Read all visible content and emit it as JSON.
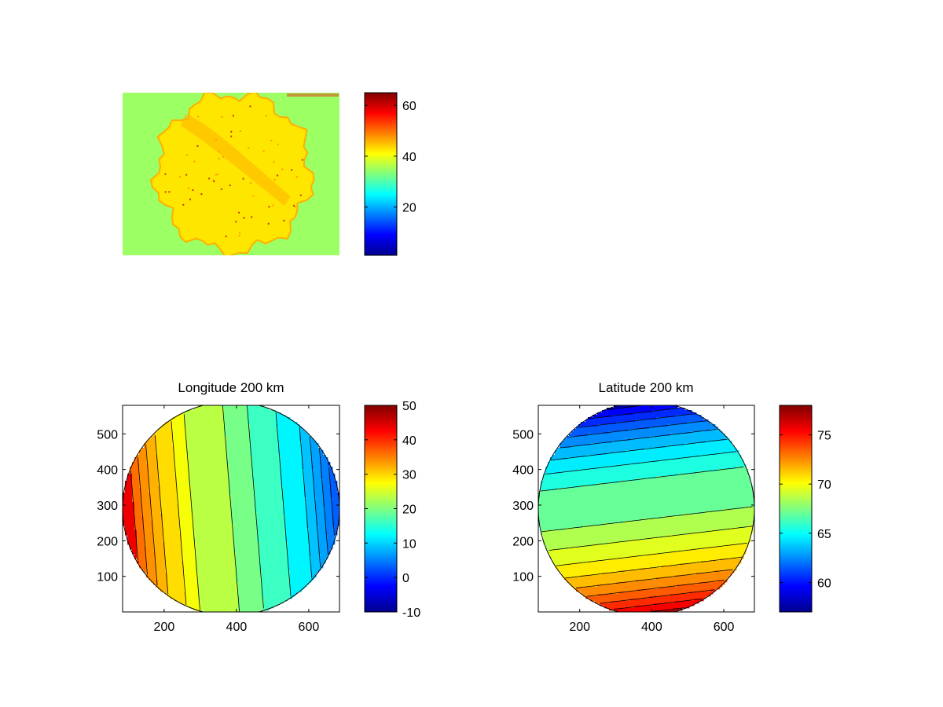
{
  "figure": {
    "background": "#ffffff"
  },
  "colormap": "jet",
  "chart_data": [
    {
      "type": "heatmap",
      "id": "radar-image",
      "title": "",
      "description_field": "circular echo region, values ~35-50 (yellow/orange) on flat ~32 (light green) background",
      "background_value": 32,
      "disk_value_range": [
        36,
        50
      ],
      "hotspot_max": 65,
      "xticks": [],
      "yticks": [],
      "colorbar": {
        "clim": [
          1,
          65
        ],
        "ticks": [
          20,
          40,
          60
        ]
      }
    },
    {
      "type": "heatmap",
      "id": "longitude",
      "title": "Longitude 200 km",
      "xlim": [
        85,
        685
      ],
      "ylim": [
        0,
        580
      ],
      "xticks": [
        200,
        400,
        600
      ],
      "yticks": [
        100,
        200,
        300,
        400,
        500
      ],
      "disk_center": [
        385,
        290
      ],
      "disk_radius": 300,
      "center_value": 21,
      "edge_left_value": 38,
      "edge_right_value": 0,
      "contour_levels": [
        0,
        2,
        4,
        6,
        8,
        10,
        14,
        18,
        21,
        26,
        28,
        31,
        33,
        35,
        37
      ],
      "colorbar": {
        "clim": [
          -10,
          50
        ],
        "ticks": [
          -10,
          0,
          10,
          20,
          30,
          40,
          50
        ]
      }
    },
    {
      "type": "heatmap",
      "id": "latitude",
      "title": "Latitude 200 km",
      "xlim": [
        85,
        685
      ],
      "ylim": [
        0,
        580
      ],
      "xticks": [
        200,
        400,
        600
      ],
      "yticks": [
        100,
        200,
        300,
        400,
        500
      ],
      "disk_center": [
        385,
        290
      ],
      "disk_radius": 300,
      "center_value": 67.5,
      "edge_top_value": 58,
      "edge_bottom_value": 77,
      "contour_levels": [
        59,
        60,
        61,
        62,
        63,
        64,
        65,
        66,
        68,
        69,
        70,
        71,
        72,
        73,
        74,
        75,
        76
      ],
      "colorbar": {
        "clim": [
          57,
          78
        ],
        "ticks": [
          60,
          65,
          70,
          75
        ]
      }
    }
  ]
}
